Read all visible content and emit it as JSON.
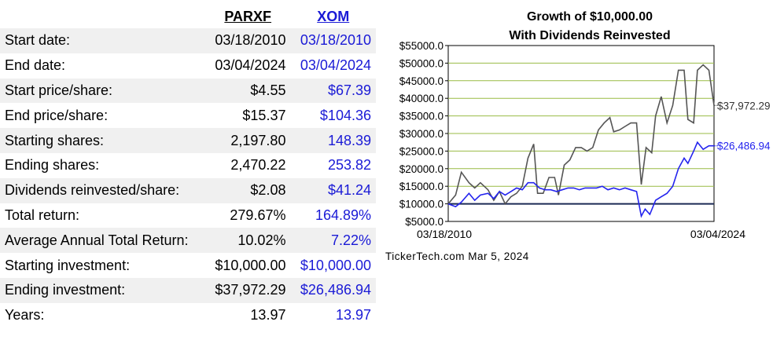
{
  "table": {
    "headers": {
      "sym1": "PARXF",
      "sym2": "XOM"
    },
    "rows": [
      {
        "label": "Start date:",
        "v1": "03/18/2010",
        "v2": "03/18/2010"
      },
      {
        "label": "End date:",
        "v1": "03/04/2024",
        "v2": "03/04/2024"
      },
      {
        "label": "Start price/share:",
        "v1": "$4.55",
        "v2": "$67.39"
      },
      {
        "label": "End price/share:",
        "v1": "$15.37",
        "v2": "$104.36"
      },
      {
        "label": "Starting shares:",
        "v1": "2,197.80",
        "v2": "148.39"
      },
      {
        "label": "Ending shares:",
        "v1": "2,470.22",
        "v2": "253.82"
      },
      {
        "label": "Dividends reinvested/share:",
        "v1": "$2.08",
        "v2": "$41.24"
      },
      {
        "label": "Total return:",
        "v1": "279.67%",
        "v2": "164.89%"
      },
      {
        "label": "Average Annual Total Return:",
        "v1": "10.02%",
        "v2": "7.22%"
      },
      {
        "label": "Starting investment:",
        "v1": "$10,000.00",
        "v2": "$10,000.00"
      },
      {
        "label": "Ending investment:",
        "v1": "$37,972.29",
        "v2": "$26,486.94"
      },
      {
        "label": "Years:",
        "v1": "13.97",
        "v2": "13.97"
      }
    ]
  },
  "chart_data": {
    "type": "line",
    "title": "Growth of $10,000.00",
    "subtitle": "With Dividends Reinvested",
    "xlabel": "",
    "ylabel": "",
    "ylim": [
      5000,
      55000
    ],
    "y_ticks": [
      "$55000.0",
      "$50000.0",
      "$45000.0",
      "$40000.0",
      "$35000.0",
      "$30000.0",
      "$25000.0",
      "$20000.0",
      "$15000.0",
      "$10000.0",
      "$5000.0"
    ],
    "y_tick_values": [
      55000,
      50000,
      45000,
      40000,
      35000,
      30000,
      25000,
      20000,
      15000,
      10000,
      5000
    ],
    "x_tick_labels": [
      "03/18/2010",
      "03/04/2024"
    ],
    "grid": true,
    "footer": "TickerTech.com Mar 5, 2024",
    "baseline": 10000,
    "x_range": [
      2010.21,
      2024.17
    ],
    "series": [
      {
        "name": "PARXF",
        "color": "#555555",
        "end_label": "$37,972.29",
        "points": [
          [
            2010.21,
            10000
          ],
          [
            2010.6,
            12500
          ],
          [
            2010.9,
            19000
          ],
          [
            2011.3,
            16000
          ],
          [
            2011.6,
            14500
          ],
          [
            2011.9,
            16000
          ],
          [
            2012.3,
            14000
          ],
          [
            2012.6,
            11000
          ],
          [
            2012.9,
            13500
          ],
          [
            2013.2,
            10000
          ],
          [
            2013.5,
            12000
          ],
          [
            2013.8,
            13000
          ],
          [
            2014.1,
            15000
          ],
          [
            2014.4,
            23000
          ],
          [
            2014.7,
            27000
          ],
          [
            2014.9,
            13000
          ],
          [
            2015.2,
            13000
          ],
          [
            2015.5,
            17500
          ],
          [
            2015.8,
            17500
          ],
          [
            2016.0,
            12500
          ],
          [
            2016.3,
            21000
          ],
          [
            2016.6,
            22500
          ],
          [
            2016.9,
            26000
          ],
          [
            2017.2,
            26000
          ],
          [
            2017.5,
            25000
          ],
          [
            2017.8,
            26000
          ],
          [
            2018.1,
            31000
          ],
          [
            2018.4,
            33000
          ],
          [
            2018.7,
            34500
          ],
          [
            2018.9,
            30500
          ],
          [
            2019.2,
            31000
          ],
          [
            2019.5,
            32000
          ],
          [
            2019.8,
            33000
          ],
          [
            2020.1,
            33000
          ],
          [
            2020.35,
            15500
          ],
          [
            2020.6,
            26000
          ],
          [
            2020.9,
            24500
          ],
          [
            2021.1,
            35000
          ],
          [
            2021.4,
            40500
          ],
          [
            2021.7,
            33000
          ],
          [
            2022.0,
            38000
          ],
          [
            2022.3,
            48000
          ],
          [
            2022.6,
            48000
          ],
          [
            2022.8,
            34000
          ],
          [
            2023.1,
            33000
          ],
          [
            2023.3,
            48000
          ],
          [
            2023.6,
            49500
          ],
          [
            2023.9,
            48000
          ],
          [
            2024.17,
            37972
          ]
        ]
      },
      {
        "name": "XOM",
        "color": "#2424ee",
        "end_label": "$26,486.94",
        "points": [
          [
            2010.21,
            10000
          ],
          [
            2010.6,
            9200
          ],
          [
            2010.9,
            10500
          ],
          [
            2011.3,
            13000
          ],
          [
            2011.6,
            11000
          ],
          [
            2011.9,
            12500
          ],
          [
            2012.3,
            13000
          ],
          [
            2012.6,
            11500
          ],
          [
            2012.9,
            13500
          ],
          [
            2013.2,
            12500
          ],
          [
            2013.5,
            13500
          ],
          [
            2013.8,
            14500
          ],
          [
            2014.1,
            14000
          ],
          [
            2014.4,
            16000
          ],
          [
            2014.7,
            16000
          ],
          [
            2015.0,
            14500
          ],
          [
            2015.3,
            14000
          ],
          [
            2015.6,
            14000
          ],
          [
            2015.9,
            13500
          ],
          [
            2016.2,
            14000
          ],
          [
            2016.5,
            14500
          ],
          [
            2016.8,
            14500
          ],
          [
            2017.1,
            14000
          ],
          [
            2017.4,
            14500
          ],
          [
            2017.7,
            14500
          ],
          [
            2018.0,
            14500
          ],
          [
            2018.3,
            15000
          ],
          [
            2018.6,
            14000
          ],
          [
            2018.9,
            14500
          ],
          [
            2019.2,
            14000
          ],
          [
            2019.5,
            14500
          ],
          [
            2019.8,
            14000
          ],
          [
            2020.1,
            13500
          ],
          [
            2020.35,
            6500
          ],
          [
            2020.55,
            8500
          ],
          [
            2020.8,
            7000
          ],
          [
            2021.1,
            11000
          ],
          [
            2021.4,
            12000
          ],
          [
            2021.7,
            13000
          ],
          [
            2022.0,
            15000
          ],
          [
            2022.3,
            20000
          ],
          [
            2022.6,
            23000
          ],
          [
            2022.8,
            21500
          ],
          [
            2023.1,
            25000
          ],
          [
            2023.3,
            27500
          ],
          [
            2023.6,
            25500
          ],
          [
            2023.9,
            26500
          ],
          [
            2024.17,
            26487
          ]
        ]
      }
    ]
  }
}
